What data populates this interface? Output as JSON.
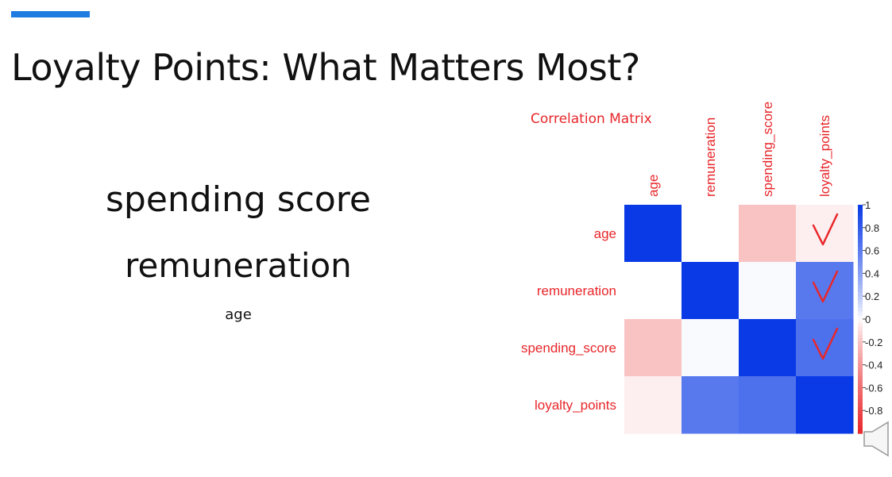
{
  "slide": {
    "title": "Loyalty Points: What Matters Most?",
    "ranked_factors": [
      "spending score",
      "remuneration",
      "age"
    ]
  },
  "correlation_matrix": {
    "title": "Correlation Matrix",
    "variables": [
      "age",
      "remuneration",
      "spending_score",
      "loyalty_points"
    ],
    "values": [
      [
        1.0,
        0.0,
        -0.2,
        -0.04
      ],
      [
        0.0,
        1.0,
        0.01,
        0.62
      ],
      [
        -0.2,
        0.01,
        1.0,
        0.67
      ],
      [
        -0.04,
        0.62,
        0.67,
        1.0
      ]
    ],
    "colorbar_ticks": [
      "1",
      "0.8",
      "0.6",
      "0.4",
      "0.2",
      "0",
      "-0.2",
      "-0.4",
      "-0.6",
      "-0.8"
    ],
    "checkmark_rows": [
      "age",
      "remuneration",
      "spending_score"
    ],
    "colors": {
      "positive": "#0a3ae6",
      "negative": "#e8262a",
      "label": "#e8262a",
      "checkmark": "#e8262a"
    }
  },
  "colors": {
    "accent": "#1e7be0",
    "text": "#111111"
  },
  "icons": {
    "audio": "speaker-icon",
    "annotation": "check-icon"
  }
}
